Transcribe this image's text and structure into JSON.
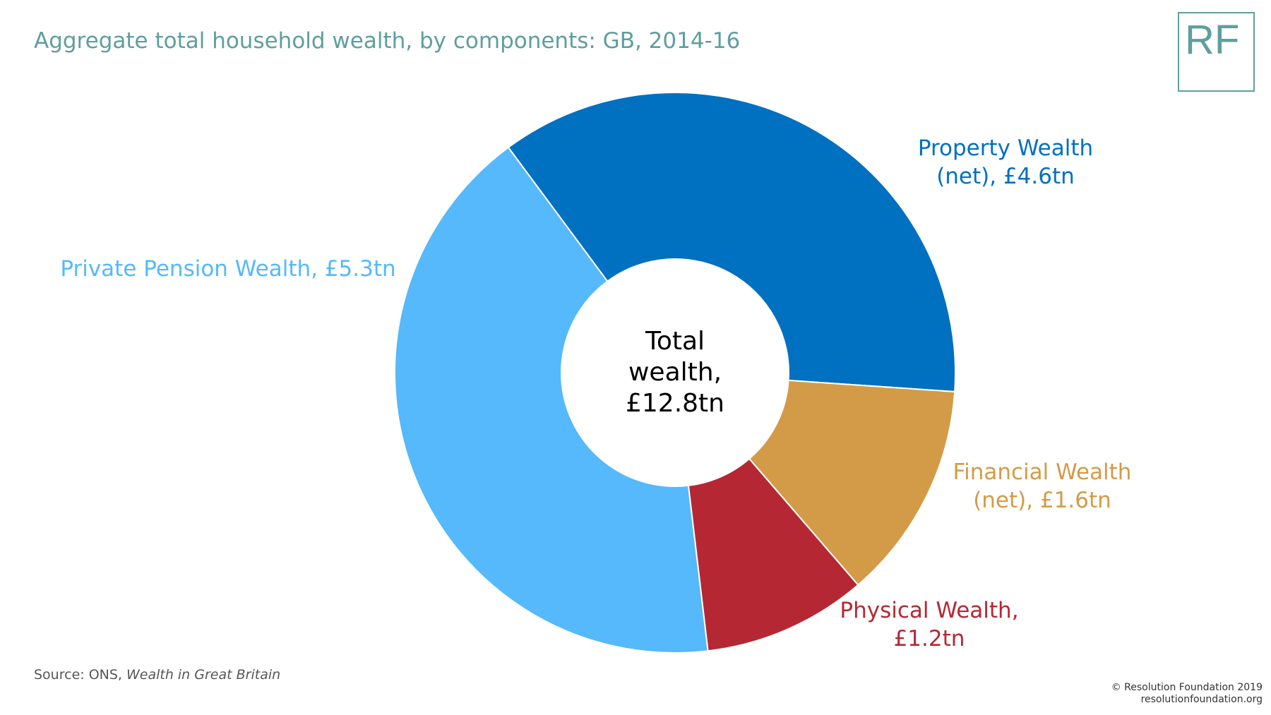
{
  "chart_data": {
    "type": "donut",
    "title": "Aggregate total household wealth, by components: GB, 2014-16",
    "center_label": "Total wealth, £12.8tn",
    "values": [
      4.6,
      1.6,
      1.2,
      5.3
    ],
    "value_labels": [
      "Property Wealth (net), £4.6tn",
      "Financial Wealth (net), £1.6tn",
      "Physical Wealth, £1.2tn",
      "Private Pension Wealth, £5.3tn"
    ],
    "colors": [
      "#0070c0",
      "#d39b48",
      "#b52833",
      "#55b9fb"
    ]
  },
  "source": {
    "label": "Source: ONS,",
    "title": "Wealth in Great Britain"
  },
  "logo": "RF",
  "footer": [
    "© Resolution Foundation 2019",
    "resolutionfoundation.org"
  ]
}
